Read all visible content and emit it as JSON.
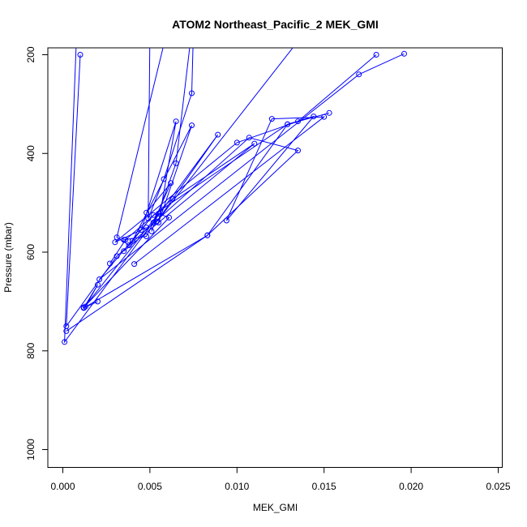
{
  "chart_data": {
    "type": "scatter",
    "title": "ATOM2 Northeast_Pacific_2 MEK_GMI",
    "xlabel": "MEK_GMI",
    "ylabel": "Pressure (mbar)",
    "xlim": [
      -0.0004,
      0.0251
    ],
    "ylim": [
      1030,
      200
    ],
    "y_reversed": true,
    "xticks": [
      0.0,
      0.005,
      0.01,
      0.015,
      0.02,
      0.025
    ],
    "xtick_labels": [
      "0.000",
      "0.005",
      "0.010",
      "0.015",
      "0.020",
      "0.025"
    ],
    "yticks": [
      200,
      400,
      600,
      800,
      1000
    ],
    "ytick_labels": [
      "200",
      "400",
      "600",
      "800",
      "1000"
    ],
    "grid": false,
    "color": "#0000ff",
    "series": [
      {
        "points": [
          [
            0.0074,
            150
          ],
          [
            0.0065,
            420
          ],
          [
            0.0051,
            558
          ]
        ]
      },
      {
        "points": [
          [
            0.005,
            150
          ],
          [
            0.0049,
            532
          ],
          [
            0.0058,
            452
          ],
          [
            0.0074,
            278
          ],
          [
            0.0075,
            150
          ]
        ]
      },
      {
        "points": [
          [
            0.006,
            150
          ],
          [
            0.0031,
            570
          ],
          [
            0.0038,
            586
          ],
          [
            0.0045,
            555
          ],
          [
            0.0065,
            335
          ],
          [
            0.0055,
            540
          ],
          [
            0.0074,
            343
          ],
          [
            0.004,
            577
          ]
        ]
      },
      {
        "points": [
          [
            0.0008,
            150
          ],
          [
            0.0001,
            782
          ],
          [
            0.0089,
            362
          ],
          [
            0.0054,
            538
          ],
          [
            0.014,
            150
          ]
        ]
      },
      {
        "points": [
          [
            0.001,
            200
          ],
          [
            0.0002,
            750
          ],
          [
            0.0031,
            608
          ],
          [
            0.0107,
            368
          ],
          [
            0.0135,
            394
          ],
          [
            0.0083,
            566
          ],
          [
            0.0012,
            713
          ]
        ]
      },
      {
        "points": [
          [
            0.0153,
            318
          ],
          [
            0.0129,
            341
          ],
          [
            0.0052,
            525
          ],
          [
            0.0021,
            655
          ],
          [
            0.017,
            240
          ],
          [
            0.0196,
            198
          ]
        ]
      },
      {
        "points": [
          [
            0.002,
            700
          ],
          [
            0.0012,
            713
          ],
          [
            0.002,
            666
          ],
          [
            0.0013,
            710
          ]
        ]
      },
      {
        "points": [
          [
            0.0002,
            760
          ],
          [
            0.0083,
            566
          ],
          [
            0.0129,
            341
          ],
          [
            0.0144,
            325
          ],
          [
            0.0094,
            536
          ],
          [
            0.012,
            330
          ],
          [
            0.015,
            326
          ],
          [
            0.0041,
            624
          ]
        ]
      },
      {
        "points": [
          [
            0.0048,
            550
          ],
          [
            0.003,
            580
          ],
          [
            0.01,
            378
          ],
          [
            0.0135,
            335
          ],
          [
            0.018,
            200
          ]
        ]
      },
      {
        "points": [
          [
            0.0035,
            575
          ],
          [
            0.0048,
            568
          ],
          [
            0.0052,
            540
          ],
          [
            0.0062,
            460
          ],
          [
            0.0048,
            520
          ]
        ]
      },
      {
        "points": [
          [
            0.0027,
            623
          ],
          [
            0.0036,
            575
          ],
          [
            0.0063,
            492
          ],
          [
            0.011,
            380
          ],
          [
            0.0035,
            598
          ]
        ]
      },
      {
        "points": [
          [
            0.0012,
            712
          ],
          [
            0.0061,
            530
          ],
          [
            0.0055,
            522
          ],
          [
            0.0012,
            713
          ]
        ]
      }
    ]
  }
}
